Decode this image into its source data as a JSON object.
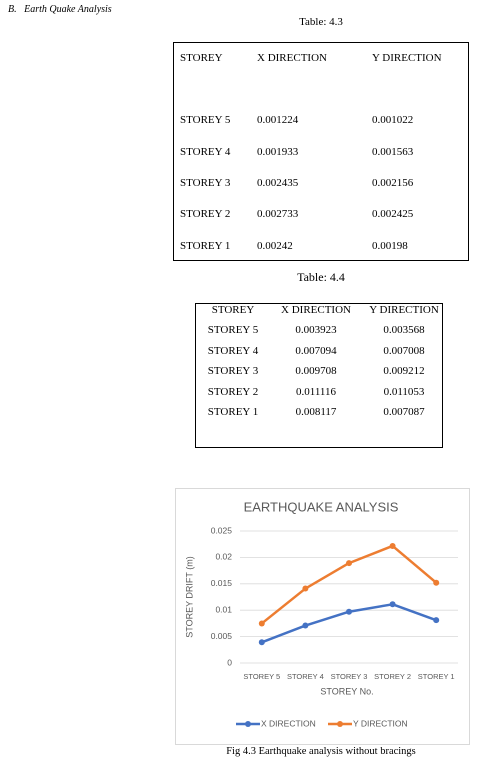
{
  "header": {
    "section": "B.",
    "title": "Earth Quake Analysis"
  },
  "table1": {
    "caption": "Table: 4.3",
    "columns": [
      "STOREY",
      "X DIRECTION",
      "Y DIRECTION"
    ],
    "rows": [
      [
        "STOREY 5",
        "0.001224",
        "0.001022"
      ],
      [
        "STOREY 4",
        "0.001933",
        "0.001563"
      ],
      [
        "STOREY 3",
        "0.002435",
        "0.002156"
      ],
      [
        "STOREY 2",
        "0.002733",
        "0.002425"
      ],
      [
        "STOREY 1",
        "0.00242",
        "0.00198"
      ]
    ]
  },
  "table2": {
    "caption": "Table: 4.4",
    "columns": [
      "STOREY",
      "X DIRECTION",
      "Y DIRECTION"
    ],
    "rows": [
      [
        "STOREY 5",
        "0.003923",
        "0.003568"
      ],
      [
        "STOREY 4",
        "0.007094",
        "0.007008"
      ],
      [
        "STOREY 3",
        "0.009708",
        "0.009212"
      ],
      [
        "STOREY 2",
        "0.011116",
        "0.011053"
      ],
      [
        "STOREY 1",
        "0.008117",
        "0.007087"
      ]
    ]
  },
  "chart_data": {
    "type": "line",
    "title": "EARTHQUAKE ANALYSIS",
    "categories": [
      "STOREY 5",
      "STOREY 4",
      "STOREY 3",
      "STOREY 2",
      "STOREY 1"
    ],
    "series": [
      {
        "name": "X DIRECTION",
        "color": "#4472c4",
        "values": [
          0.003923,
          0.007094,
          0.009708,
          0.011116,
          0.008117
        ]
      },
      {
        "name": "Y DIRECTION",
        "color": "#ed7d31",
        "values": [
          0.003568,
          0.007008,
          0.009212,
          0.011053,
          0.007087
        ]
      }
    ],
    "stacked": true,
    "ylim": [
      0,
      0.025
    ],
    "yticks": [
      0,
      0.005,
      0.01,
      0.015,
      0.02,
      0.025
    ],
    "y_label": "STOREY DRIFT (m)",
    "x_label": "STOREY No.",
    "grid": true,
    "legend": "bottom"
  },
  "caption": "Fig 4.3 Earthquake analysis without bracings"
}
